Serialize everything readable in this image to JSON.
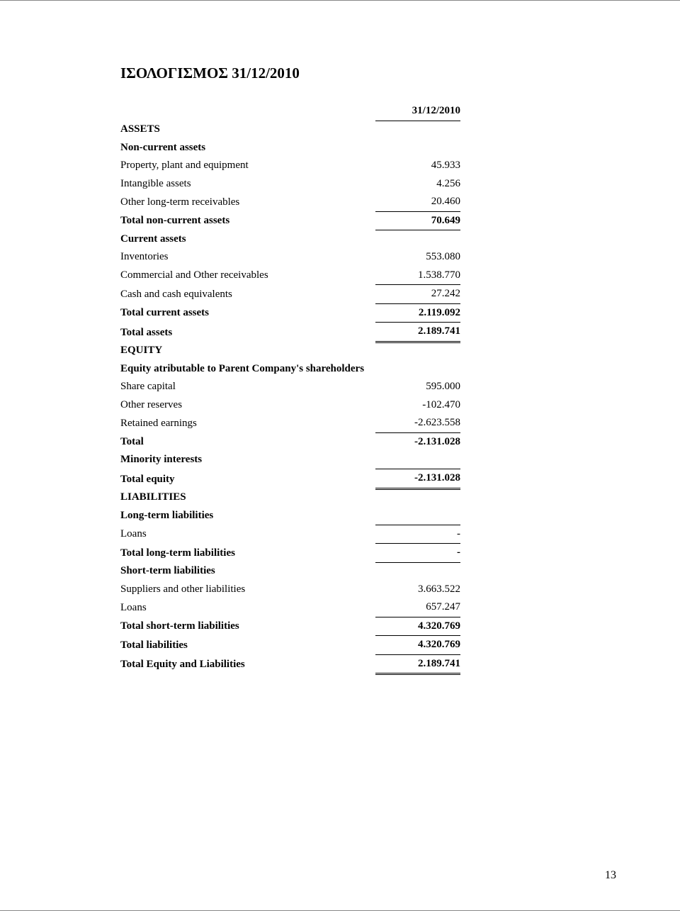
{
  "title": "ΙΣΟΛΟΓΙΣΜΟΣ 31/12/2010",
  "dateHeader": "31/12/2010",
  "pageNumber": "13",
  "rows": [
    {
      "label": "ASSETS",
      "value": "",
      "labelBold": true,
      "valBold": false,
      "valClasses": ""
    },
    {
      "label": "Non-current assets",
      "value": "",
      "labelBold": true,
      "valBold": false,
      "valClasses": ""
    },
    {
      "label": "Property, plant and equipment",
      "value": "45.933",
      "labelBold": false,
      "valBold": false,
      "valClasses": ""
    },
    {
      "label": "Intangible assets",
      "value": "4.256",
      "labelBold": false,
      "valBold": false,
      "valClasses": ""
    },
    {
      "label": "Other long-term receivables",
      "value": "20.460",
      "labelBold": false,
      "valBold": false,
      "valClasses": "u-bot"
    },
    {
      "label": "Total non-current assets",
      "value": "70.649",
      "labelBold": true,
      "valBold": true,
      "valClasses": "u-bot"
    },
    {
      "label": "Current assets",
      "value": "",
      "labelBold": true,
      "valBold": false,
      "valClasses": ""
    },
    {
      "label": "Inventories",
      "value": "553.080",
      "labelBold": false,
      "valBold": false,
      "valClasses": ""
    },
    {
      "label": "Commercial and Other receivables",
      "value": "1.538.770",
      "labelBold": false,
      "valBold": false,
      "valClasses": ""
    },
    {
      "label": "Cash and cash equivalents",
      "value": "27.242",
      "labelBold": false,
      "valBold": false,
      "valClasses": "u-top u-bot"
    },
    {
      "label": "Total current assets",
      "value": "2.119.092",
      "labelBold": true,
      "valBold": true,
      "valClasses": "u-bot"
    },
    {
      "label": "Total assets",
      "value": "2.189.741",
      "labelBold": true,
      "valBold": true,
      "valClasses": "dbl-bot"
    },
    {
      "label": "EQUITY",
      "value": "",
      "labelBold": true,
      "valBold": false,
      "valClasses": ""
    },
    {
      "label": "Equity atributable to Parent Company's shareholders",
      "value": "",
      "labelBold": true,
      "valBold": false,
      "valClasses": ""
    },
    {
      "label": "Share capital",
      "value": "595.000",
      "labelBold": false,
      "valBold": false,
      "valClasses": ""
    },
    {
      "label": "Other reserves",
      "value": "-102.470",
      "labelBold": false,
      "valBold": false,
      "valClasses": ""
    },
    {
      "label": "Retained earnings",
      "value": "-2.623.558",
      "labelBold": false,
      "valBold": false,
      "valClasses": "u-bot"
    },
    {
      "label": "Total",
      "value": "-2.131.028",
      "labelBold": true,
      "valBold": true,
      "valClasses": ""
    },
    {
      "label": "Minority interests",
      "value": "",
      "labelBold": true,
      "valBold": false,
      "valClasses": "u-bot"
    },
    {
      "label": "Total equity",
      "value": "-2.131.028",
      "labelBold": true,
      "valBold": true,
      "valClasses": "u-top dbl-bot"
    },
    {
      "label": "LIABILITIES",
      "value": "",
      "labelBold": true,
      "valBold": false,
      "valClasses": ""
    },
    {
      "label": "Long-term liabilities",
      "value": "",
      "labelBold": true,
      "valBold": false,
      "valClasses": ""
    },
    {
      "label": "Loans",
      "value": "-",
      "labelBold": false,
      "valBold": false,
      "valClasses": "u-top u-bot"
    },
    {
      "label": "Total long-term liabilities",
      "value": "-",
      "labelBold": true,
      "valBold": true,
      "valClasses": "u-bot"
    },
    {
      "label": "Short-term liabilities",
      "value": "",
      "labelBold": true,
      "valBold": false,
      "valClasses": ""
    },
    {
      "label": "Suppliers and other liabilities",
      "value": "3.663.522",
      "labelBold": false,
      "valBold": false,
      "valClasses": ""
    },
    {
      "label": "Loans",
      "value": "657.247",
      "labelBold": false,
      "valBold": false,
      "valClasses": "u-bot"
    },
    {
      "label": "Total short-term liabilities",
      "value": "4.320.769",
      "labelBold": true,
      "valBold": true,
      "valClasses": "u-bot"
    },
    {
      "label": "Total liabilities",
      "value": "4.320.769",
      "labelBold": true,
      "valBold": true,
      "valClasses": "u-bot"
    },
    {
      "label": "Total Equity and Liabilities",
      "value": "2.189.741",
      "labelBold": true,
      "valBold": true,
      "valClasses": "dbl-bot"
    }
  ]
}
